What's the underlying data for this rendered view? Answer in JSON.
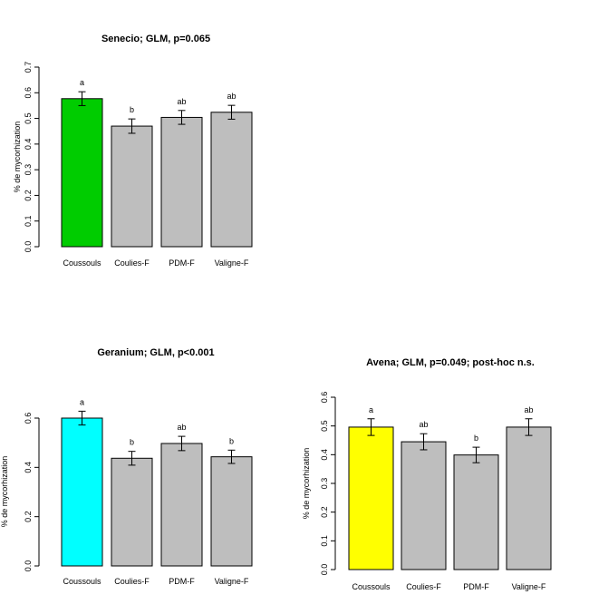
{
  "chart_data": [
    {
      "type": "bar",
      "title": "Senecio; GLM, p=0.065",
      "ylabel": "% de mycorhization",
      "categories": [
        "Coussouls",
        "Coulies-F",
        "PDM-F",
        "Valigne-F"
      ],
      "values": [
        0.577,
        0.47,
        0.504,
        0.524
      ],
      "errors": [
        0.027,
        0.028,
        0.027,
        0.027
      ],
      "letters": [
        "a",
        "b",
        "ab",
        "ab"
      ],
      "colors": [
        "#00cc00",
        "#bebebe",
        "#bebebe",
        "#bebebe"
      ],
      "ylim": [
        0,
        0.7
      ],
      "yticks": [
        0.0,
        0.1,
        0.2,
        0.3,
        0.4,
        0.5,
        0.6,
        0.7
      ],
      "ytick_labels": [
        "0.0",
        "0.1",
        "0.2",
        "0.3",
        "0.4",
        "0.5",
        "0.6",
        "0.7"
      ],
      "error_bars": true,
      "grid": false
    },
    {
      "type": "bar",
      "title": "Geranium; GLM, p<0.001",
      "ylabel": "% de mycorhization",
      "categories": [
        "Coussouls",
        "Coulies-F",
        "PDM-F",
        "Valigne-F"
      ],
      "values": [
        0.6,
        0.437,
        0.497,
        0.443
      ],
      "errors": [
        0.028,
        0.028,
        0.029,
        0.027
      ],
      "letters": [
        "a",
        "b",
        "ab",
        "b"
      ],
      "colors": [
        "#00ffff",
        "#bebebe",
        "#bebebe",
        "#bebebe"
      ],
      "ylim": [
        0,
        0.6
      ],
      "yticks": [
        0.0,
        0.2,
        0.4,
        0.6
      ],
      "ytick_labels": [
        "0.0",
        "0.2",
        "0.4",
        "0.6"
      ],
      "error_bars": true,
      "grid": false
    },
    {
      "type": "bar",
      "title": "Avena; GLM, p=0.049; post-hoc n.s.",
      "ylabel": "% de mycorhization",
      "categories": [
        "Coussouls",
        "Coulies-F",
        "PDM-F",
        "Valigne-F"
      ],
      "values": [
        0.496,
        0.445,
        0.399,
        0.496
      ],
      "errors": [
        0.029,
        0.028,
        0.027,
        0.029
      ],
      "letters": [
        "a",
        "ab",
        "b",
        "ab"
      ],
      "colors": [
        "#ffff00",
        "#bebebe",
        "#bebebe",
        "#bebebe"
      ],
      "ylim": [
        0,
        0.6
      ],
      "yticks": [
        0.0,
        0.1,
        0.2,
        0.3,
        0.4,
        0.5,
        0.6
      ],
      "ytick_labels": [
        "0.0",
        "0.1",
        "0.2",
        "0.3",
        "0.4",
        "0.5",
        "0.6"
      ],
      "error_bars": true,
      "grid": false
    }
  ]
}
